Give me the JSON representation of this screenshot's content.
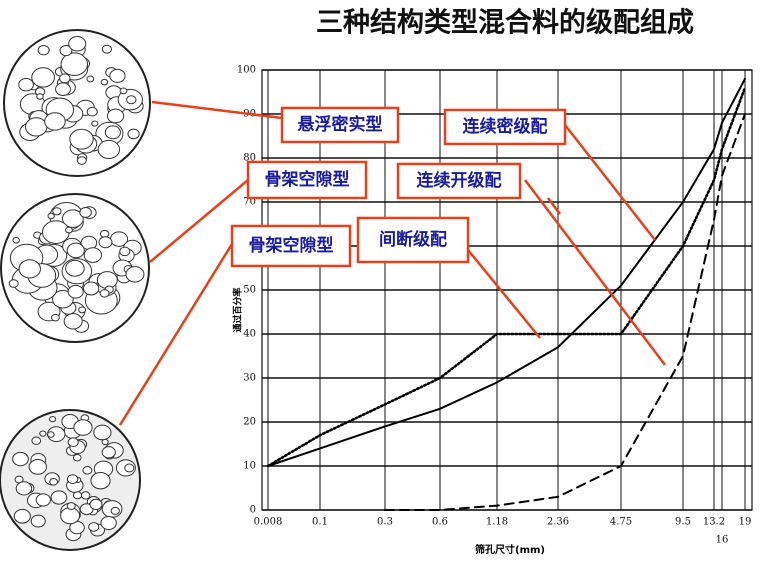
{
  "chart_data": {
    "type": "line",
    "title": "三种结构类型混合料的级配组成",
    "x_label": "筛孔尺寸(mm)",
    "y_label": "通过百分率",
    "categories": [
      "0.008",
      "0.1",
      "0.3",
      "0.6",
      "1.18",
      "2.36",
      "4.75",
      "9.5",
      "13.2",
      "16",
      "19"
    ],
    "ylim": [
      0,
      100
    ],
    "yticks": [
      0,
      10,
      20,
      30,
      40,
      50,
      60,
      70,
      80,
      90,
      100
    ],
    "grid": true,
    "series": [
      {
        "color": "#000000",
        "style": "solid",
        "values": [
          10,
          14,
          19,
          23,
          29,
          37,
          51,
          70,
          82,
          88,
          98
        ]
      },
      {
        "color": "#000000",
        "style": "dotted",
        "values": [
          10,
          17,
          24,
          30,
          40,
          40,
          40,
          60,
          75,
          82,
          96
        ]
      },
      {
        "color": "#000000",
        "style": "dashed",
        "values": [
          null,
          null,
          0,
          0,
          1,
          3,
          10,
          35,
          66,
          76,
          90
        ]
      }
    ],
    "annotations": [
      "悬浮密实型",
      "连续密级配",
      "骨架空隙型",
      "连续开级配",
      "骨架空隙型",
      "间断级配"
    ]
  }
}
